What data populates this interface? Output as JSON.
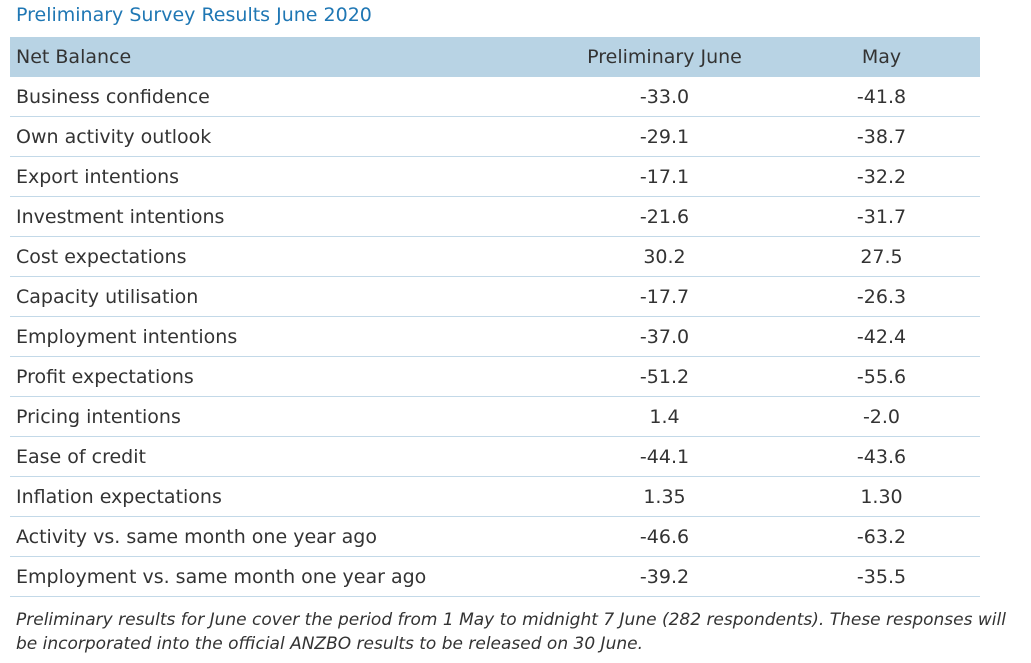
{
  "title": "Preliminary Survey Results June 2020",
  "table": {
    "header": [
      "Net Balance",
      "Preliminary June",
      "May"
    ],
    "rows": [
      [
        "Business confidence",
        "-33.0",
        "-41.8"
      ],
      [
        "Own activity outlook",
        "-29.1",
        "-38.7"
      ],
      [
        "Export intentions",
        "-17.1",
        "-32.2"
      ],
      [
        "Investment intentions",
        "-21.6",
        "-31.7"
      ],
      [
        "Cost expectations",
        "30.2",
        "27.5"
      ],
      [
        "Capacity utilisation",
        "-17.7",
        "-26.3"
      ],
      [
        "Employment intentions",
        "-37.0",
        "-42.4"
      ],
      [
        "Profit expectations",
        "-51.2",
        "-55.6"
      ],
      [
        "Pricing intentions",
        "1.4",
        "-2.0"
      ],
      [
        "Ease of credit",
        "-44.1",
        "-43.6"
      ],
      [
        "Inflation expectations",
        "1.35",
        "1.30"
      ],
      [
        "Activity vs. same month one year ago",
        "-46.6",
        "-63.2"
      ],
      [
        "Employment vs. same month one year ago",
        "-39.2",
        "-35.5"
      ]
    ]
  },
  "footnote": "Preliminary results for June cover the period from 1 May to midnight 7 June (282 respondents). These responses will be incorporated into the official ANZBO results to be released on 30 June."
}
